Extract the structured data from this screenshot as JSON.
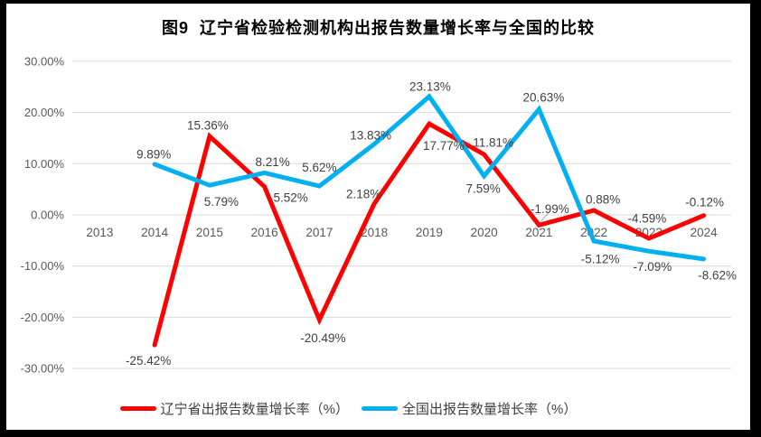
{
  "window": {
    "frame_color": "#000000",
    "canvas_color": "#FFFFFF"
  },
  "chart_data": {
    "type": "line",
    "title": "图9  辽宁省检验检测机构出报告数量增长率与全国的比较",
    "categories": [
      "2013",
      "2014",
      "2015",
      "2016",
      "2017",
      "2018",
      "2019",
      "2020",
      "2021",
      "2022",
      "2023",
      "2024"
    ],
    "y_axis": {
      "min": -30,
      "max": 30,
      "step": 10,
      "tick_values": [
        30,
        20,
        10,
        0,
        -10,
        -20,
        -30
      ],
      "tick_labels": [
        "30.00%",
        "20.00%",
        "10.00%",
        "0.00%",
        "-10.00%",
        "-20.00%",
        "-30.00%"
      ]
    },
    "grid": true,
    "legend_position": "bottom",
    "colors": {
      "grid": "#D9D9D9",
      "axis_text": "#595959",
      "data_label_text": "#404040",
      "leader_line": "#A6A6A6"
    },
    "series": [
      {
        "name": "辽宁省出报告数量增长率（%）",
        "color": "#FF0000",
        "data": [
          {
            "year": "2014",
            "value": -25.42,
            "label": "-25.42%",
            "dx": -7,
            "dy": 17
          },
          {
            "year": "2015",
            "value": 15.36,
            "label": "15.36%",
            "dx": -2,
            "dy": -12
          },
          {
            "year": "2016",
            "value": 5.52,
            "label": "5.52%",
            "dx": 29,
            "dy": 12
          },
          {
            "year": "2017",
            "value": -20.49,
            "label": "-20.49%",
            "dx": 4,
            "dy": 20
          },
          {
            "year": "2018",
            "value": 2.18,
            "label": "2.18%",
            "dx": -12,
            "dy": -11
          },
          {
            "year": "2019",
            "value": 17.77,
            "label": "17.77%",
            "dx": 16,
            "dy": 24
          },
          {
            "year": "2020",
            "value": 11.81,
            "label": "11.81%",
            "dx": 10,
            "dy": -13
          },
          {
            "year": "2021",
            "value": -1.99,
            "label": "-1.99%",
            "dx": 12,
            "dy": -18,
            "leader": true
          },
          {
            "year": "2022",
            "value": 0.88,
            "label": "0.88%",
            "dx": 10,
            "dy": -12
          },
          {
            "year": "2023",
            "value": -4.59,
            "label": "-4.59%",
            "dx": -2,
            "dy": -22
          },
          {
            "year": "2024",
            "value": -0.12,
            "label": "-0.12%",
            "dx": 1,
            "dy": -15
          }
        ]
      },
      {
        "name": "全国出报告数量增长率（%）",
        "color": "#00B0F0",
        "data": [
          {
            "year": "2014",
            "value": 9.89,
            "label": "9.89%",
            "dx": -1,
            "dy": -11
          },
          {
            "year": "2015",
            "value": 5.79,
            "label": "5.79%",
            "dx": 13,
            "dy": 18
          },
          {
            "year": "2016",
            "value": 8.21,
            "label": "8.21%",
            "dx": 9,
            "dy": -12
          },
          {
            "year": "2017",
            "value": 5.62,
            "label": "5.62%",
            "dx": 0,
            "dy": -21
          },
          {
            "year": "2018",
            "value": 13.83,
            "label": "13.83%",
            "dx": -4,
            "dy": -10
          },
          {
            "year": "2019",
            "value": 23.13,
            "label": "23.13%",
            "dx": 1,
            "dy": -11
          },
          {
            "year": "2020",
            "value": 7.59,
            "label": "7.59%",
            "dx": -1,
            "dy": 14
          },
          {
            "year": "2021",
            "value": 20.63,
            "label": "20.63%",
            "dx": 5,
            "dy": -13
          },
          {
            "year": "2022",
            "value": -5.12,
            "label": "-5.12%",
            "dx": 7,
            "dy": 20
          },
          {
            "year": "2023",
            "value": -7.09,
            "label": "-7.09%",
            "dx": 4,
            "dy": 17
          },
          {
            "year": "2024",
            "value": -8.62,
            "label": "-8.62%",
            "dx": 15,
            "dy": 18
          }
        ]
      }
    ]
  }
}
